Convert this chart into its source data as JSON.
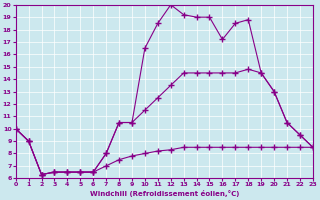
{
  "xlabel": "Windchill (Refroidissement éolien,°C)",
  "xlim": [
    0,
    23
  ],
  "ylim": [
    6,
    20
  ],
  "xticks": [
    0,
    1,
    2,
    3,
    4,
    5,
    6,
    7,
    8,
    9,
    10,
    11,
    12,
    13,
    14,
    15,
    16,
    17,
    18,
    19,
    20,
    21,
    22,
    23
  ],
  "yticks": [
    6,
    7,
    8,
    9,
    10,
    11,
    12,
    13,
    14,
    15,
    16,
    17,
    18,
    19,
    20
  ],
  "background_color": "#cce8ee",
  "line_color": "#880088",
  "grid_color": "#aaddcc",
  "line1_x": [
    0,
    1,
    2,
    3,
    4,
    5,
    6,
    7,
    8,
    9,
    10,
    11,
    12,
    13,
    14,
    15,
    16,
    17,
    18,
    19,
    20,
    21,
    22,
    23
  ],
  "line1_y": [
    10,
    9,
    6.3,
    6.5,
    6.5,
    6.5,
    6.5,
    8.0,
    10.5,
    10.5,
    16.5,
    18.5,
    20,
    19.2,
    19,
    19,
    17.2,
    18.5,
    18.8,
    14.5,
    13,
    10.5,
    9.5,
    8.5
  ],
  "line2_x": [
    0,
    1,
    2,
    3,
    4,
    5,
    6,
    7,
    8,
    9,
    10,
    11,
    12,
    13,
    14,
    15,
    16,
    17,
    18,
    19,
    20,
    21,
    22,
    23
  ],
  "line2_y": [
    10,
    9,
    6.3,
    6.5,
    6.5,
    6.5,
    6.5,
    8.0,
    10.5,
    10.5,
    11.5,
    12.5,
    13.5,
    14.5,
    14.5,
    14.5,
    14.5,
    14.5,
    14.8,
    14.5,
    13,
    10.5,
    9.5,
    8.5
  ],
  "line3_x": [
    0,
    1,
    2,
    3,
    4,
    5,
    6,
    7,
    8,
    9,
    10,
    11,
    12,
    13,
    14,
    15,
    16,
    17,
    18,
    19,
    20,
    21,
    22,
    23
  ],
  "line3_y": [
    10,
    9,
    6.3,
    6.5,
    6.5,
    6.5,
    6.5,
    7.0,
    7.5,
    7.8,
    8.0,
    8.2,
    8.3,
    8.5,
    8.5,
    8.5,
    8.5,
    8.5,
    8.5,
    8.5,
    8.5,
    8.5,
    8.5,
    8.5
  ]
}
